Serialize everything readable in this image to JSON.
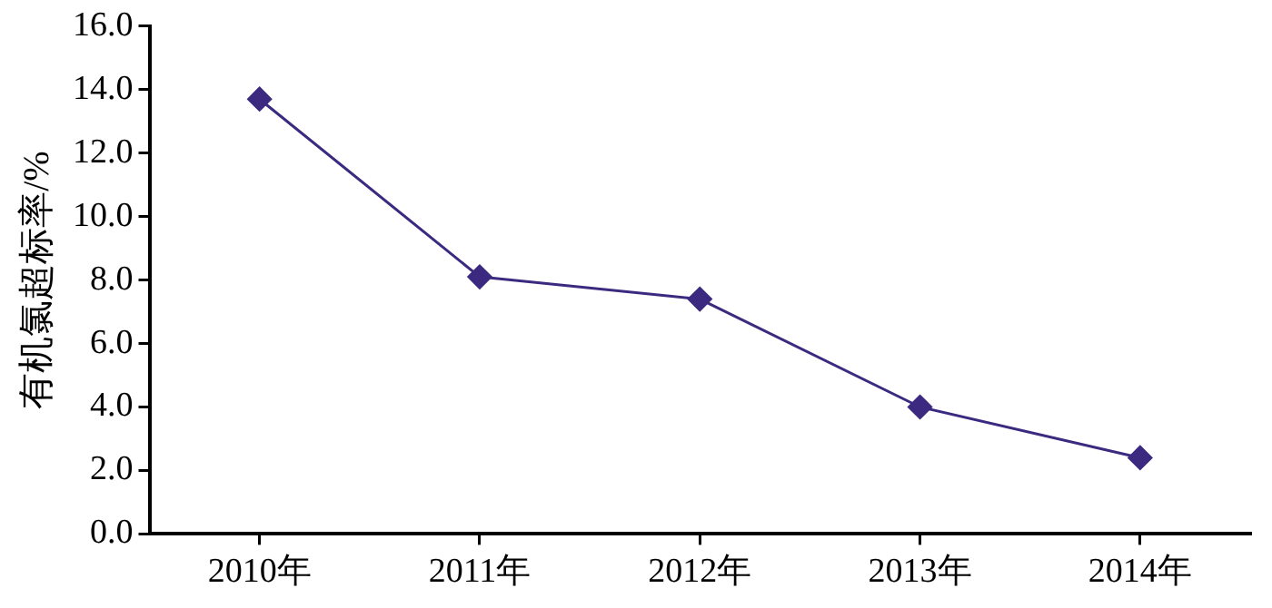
{
  "chart_data": {
    "type": "line",
    "ylabel": "有机氯超标率/%",
    "categories": [
      "2010年",
      "2011年",
      "2012年",
      "2013年",
      "2014年"
    ],
    "series": [
      {
        "color": "#3b2a80",
        "values": [
          13.7,
          8.1,
          7.4,
          4.0,
          2.4
        ]
      }
    ],
    "ylim": [
      0,
      16
    ],
    "yticks": [
      {
        "value": 0,
        "label": "0.0"
      },
      {
        "value": 2,
        "label": "2.0"
      },
      {
        "value": 4,
        "label": "4.0"
      },
      {
        "value": 6,
        "label": "6.0"
      },
      {
        "value": 8,
        "label": "8.0"
      },
      {
        "value": 10,
        "label": "10.0"
      },
      {
        "value": 12,
        "label": "12.0"
      },
      {
        "value": 14,
        "label": "14.0"
      },
      {
        "value": 16,
        "label": "16.0"
      }
    ],
    "grid": false,
    "legend": false,
    "marker": "diamond",
    "line_style": "solid"
  }
}
